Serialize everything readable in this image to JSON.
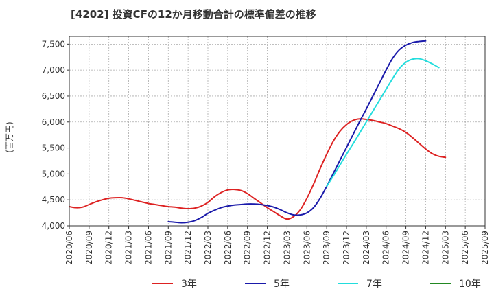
{
  "chart_data": {
    "type": "line",
    "title": "[4202]  投資CFの12か月移動合計の標準偏差の推移",
    "ylabel": "(百万円)",
    "xlabel": "",
    "ylim": [
      4000,
      7650
    ],
    "yticks": [
      4000,
      4500,
      5000,
      5500,
      6000,
      6500,
      7000,
      7500
    ],
    "ytick_labels": [
      "4,000",
      "4,500",
      "5,000",
      "5,500",
      "6,000",
      "6,500",
      "7,000",
      "7,500"
    ],
    "xticks": [
      "2020/06",
      "2020/09",
      "2020/12",
      "2021/03",
      "2021/06",
      "2021/09",
      "2021/12",
      "2022/03",
      "2022/06",
      "2022/09",
      "2022/12",
      "2023/03",
      "2023/06",
      "2023/09",
      "2023/12",
      "2024/03",
      "2024/06",
      "2024/09",
      "2024/12",
      "2025/03",
      "2025/06",
      "2025/09"
    ],
    "grid": true,
    "legend_position": "bottom",
    "series": [
      {
        "name": "3年",
        "color": "#dd2222",
        "points": [
          [
            "2020/06",
            4370
          ],
          [
            "2020/07",
            4350
          ],
          [
            "2020/08",
            4360
          ],
          [
            "2020/09",
            4410
          ],
          [
            "2020/10",
            4460
          ],
          [
            "2020/11",
            4500
          ],
          [
            "2020/12",
            4530
          ],
          [
            "2021/01",
            4540
          ],
          [
            "2021/02",
            4540
          ],
          [
            "2021/03",
            4520
          ],
          [
            "2021/04",
            4490
          ],
          [
            "2021/05",
            4460
          ],
          [
            "2021/06",
            4430
          ],
          [
            "2021/07",
            4410
          ],
          [
            "2021/08",
            4390
          ],
          [
            "2021/09",
            4370
          ],
          [
            "2021/10",
            4360
          ],
          [
            "2021/11",
            4340
          ],
          [
            "2021/12",
            4330
          ],
          [
            "2022/01",
            4340
          ],
          [
            "2022/02",
            4380
          ],
          [
            "2022/03",
            4450
          ],
          [
            "2022/04",
            4560
          ],
          [
            "2022/05",
            4640
          ],
          [
            "2022/06",
            4690
          ],
          [
            "2022/07",
            4700
          ],
          [
            "2022/08",
            4680
          ],
          [
            "2022/09",
            4620
          ],
          [
            "2022/10",
            4530
          ],
          [
            "2022/11",
            4440
          ],
          [
            "2022/12",
            4350
          ],
          [
            "2023/01",
            4270
          ],
          [
            "2023/02",
            4190
          ],
          [
            "2023/03",
            4130
          ],
          [
            "2023/04",
            4180
          ],
          [
            "2023/05",
            4310
          ],
          [
            "2023/06",
            4530
          ],
          [
            "2023/07",
            4800
          ],
          [
            "2023/08",
            5100
          ],
          [
            "2023/09",
            5380
          ],
          [
            "2023/10",
            5630
          ],
          [
            "2023/11",
            5820
          ],
          [
            "2023/12",
            5950
          ],
          [
            "2024/01",
            6030
          ],
          [
            "2024/02",
            6060
          ],
          [
            "2024/03",
            6050
          ],
          [
            "2024/04",
            6030
          ],
          [
            "2024/05",
            6000
          ],
          [
            "2024/06",
            5970
          ],
          [
            "2024/07",
            5920
          ],
          [
            "2024/08",
            5870
          ],
          [
            "2024/09",
            5800
          ],
          [
            "2024/10",
            5700
          ],
          [
            "2024/11",
            5590
          ],
          [
            "2024/12",
            5480
          ],
          [
            "2025/01",
            5390
          ],
          [
            "2025/02",
            5340
          ],
          [
            "2025/03",
            5320
          ]
        ]
      },
      {
        "name": "5年",
        "color": "#1a1aaa",
        "points": [
          [
            "2021/09",
            4080
          ],
          [
            "2021/10",
            4070
          ],
          [
            "2021/11",
            4060
          ],
          [
            "2021/12",
            4070
          ],
          [
            "2022/01",
            4100
          ],
          [
            "2022/02",
            4160
          ],
          [
            "2022/03",
            4240
          ],
          [
            "2022/04",
            4300
          ],
          [
            "2022/05",
            4350
          ],
          [
            "2022/06",
            4380
          ],
          [
            "2022/07",
            4400
          ],
          [
            "2022/08",
            4410
          ],
          [
            "2022/09",
            4420
          ],
          [
            "2022/10",
            4420
          ],
          [
            "2022/11",
            4410
          ],
          [
            "2022/12",
            4390
          ],
          [
            "2023/01",
            4360
          ],
          [
            "2023/02",
            4310
          ],
          [
            "2023/03",
            4250
          ],
          [
            "2023/04",
            4210
          ],
          [
            "2023/05",
            4210
          ],
          [
            "2023/06",
            4250
          ],
          [
            "2023/07",
            4350
          ],
          [
            "2023/08",
            4530
          ],
          [
            "2023/09",
            4760
          ],
          [
            "2023/10",
            5010
          ],
          [
            "2023/11",
            5260
          ],
          [
            "2023/12",
            5510
          ],
          [
            "2024/01",
            5760
          ],
          [
            "2024/02",
            6010
          ],
          [
            "2024/03",
            6250
          ],
          [
            "2024/04",
            6500
          ],
          [
            "2024/05",
            6750
          ],
          [
            "2024/06",
            7000
          ],
          [
            "2024/07",
            7230
          ],
          [
            "2024/08",
            7390
          ],
          [
            "2024/09",
            7480
          ],
          [
            "2024/10",
            7530
          ],
          [
            "2024/11",
            7550
          ],
          [
            "2024/12",
            7560
          ]
        ]
      },
      {
        "name": "7年",
        "color": "#22dddd",
        "points": [
          [
            "2023/09",
            4760
          ],
          [
            "2023/10",
            4960
          ],
          [
            "2023/11",
            5170
          ],
          [
            "2023/12",
            5380
          ],
          [
            "2024/01",
            5580
          ],
          [
            "2024/02",
            5790
          ],
          [
            "2024/03",
            6000
          ],
          [
            "2024/04",
            6210
          ],
          [
            "2024/05",
            6420
          ],
          [
            "2024/06",
            6630
          ],
          [
            "2024/07",
            6840
          ],
          [
            "2024/08",
            7030
          ],
          [
            "2024/09",
            7150
          ],
          [
            "2024/10",
            7210
          ],
          [
            "2024/11",
            7220
          ],
          [
            "2024/12",
            7180
          ],
          [
            "2025/01",
            7120
          ],
          [
            "2025/02",
            7050
          ]
        ]
      },
      {
        "name": "10年",
        "color": "#228822",
        "points": []
      }
    ]
  }
}
